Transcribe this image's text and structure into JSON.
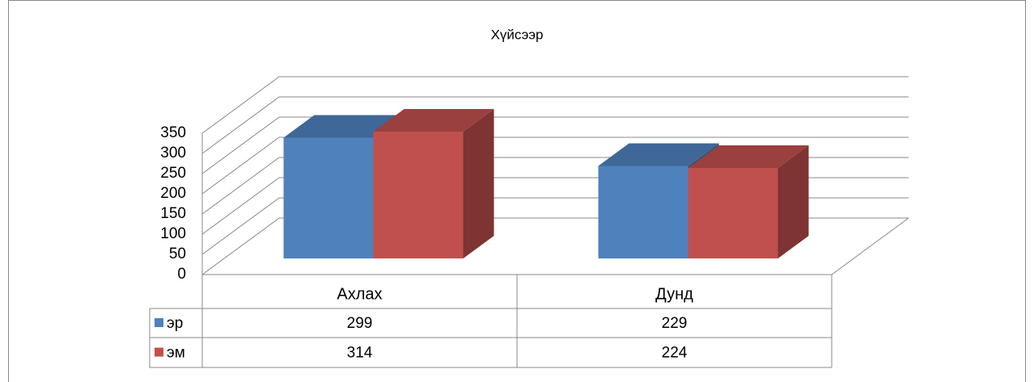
{
  "chart_data": {
    "type": "bar3d",
    "title": "Хүйсээр",
    "categories": [
      "Ахлах",
      "Дунд"
    ],
    "series": [
      {
        "name": "эр",
        "color": "#4f81bd",
        "values": [
          299,
          229
        ]
      },
      {
        "name": "эм",
        "color": "#c0504d",
        "values": [
          314,
          224
        ]
      }
    ],
    "ylim": [
      0,
      350
    ],
    "yticks": [
      0,
      50,
      100,
      150,
      200,
      250,
      300,
      350
    ],
    "grid": true,
    "data_table": true
  }
}
